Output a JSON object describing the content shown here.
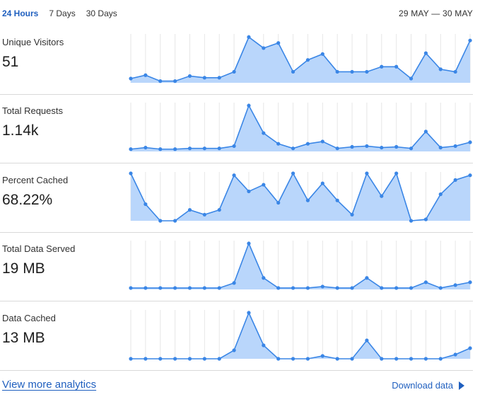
{
  "tabs": [
    {
      "label": "24 Hours",
      "active": true
    },
    {
      "label": "7 Days",
      "active": false
    },
    {
      "label": "30 Days",
      "active": false
    }
  ],
  "date_range": "29 MAY — 30 MAY",
  "colors": {
    "accent": "#3a86e6",
    "fill": "#b9d6fb",
    "grid": "#e6e6e6",
    "link": "#1f5fbf"
  },
  "metrics": [
    {
      "label": "Unique Visitors",
      "value": "51"
    },
    {
      "label": "Total Requests",
      "value": "1.14k"
    },
    {
      "label": "Percent Cached",
      "value": "68.22%"
    },
    {
      "label": "Total Data Served",
      "value": "19 MB"
    },
    {
      "label": "Data Cached",
      "value": "13 MB"
    }
  ],
  "chart_data": [
    {
      "type": "area",
      "title": "Unique Visitors",
      "x": [
        0,
        1,
        2,
        3,
        4,
        5,
        6,
        7,
        8,
        9,
        10,
        11,
        12,
        13,
        14,
        15,
        16,
        17,
        18,
        19,
        20,
        21,
        22,
        23
      ],
      "values": [
        5,
        9,
        2,
        2,
        8,
        6,
        6,
        13,
        54,
        41,
        47,
        13,
        27,
        34,
        13,
        13,
        13,
        19,
        19,
        5,
        35,
        16,
        13,
        50
      ],
      "ylim": [
        0,
        56
      ]
    },
    {
      "type": "area",
      "title": "Total Requests",
      "x": [
        0,
        1,
        2,
        3,
        4,
        5,
        6,
        7,
        8,
        9,
        10,
        11,
        12,
        13,
        14,
        15,
        16,
        17,
        18,
        19,
        20,
        21,
        22,
        23
      ],
      "values": [
        3,
        5,
        3,
        3,
        4,
        4,
        4,
        7,
        60,
        24,
        10,
        4,
        10,
        13,
        4,
        6,
        7,
        5,
        6,
        4,
        26,
        5,
        7,
        12
      ],
      "ylim": [
        0,
        62
      ]
    },
    {
      "type": "area",
      "title": "Percent Cached",
      "x": [
        0,
        1,
        2,
        3,
        4,
        5,
        6,
        7,
        8,
        9,
        10,
        11,
        12,
        13,
        14,
        15,
        16,
        17,
        18,
        19,
        20,
        21,
        22,
        23
      ],
      "values": [
        100,
        35,
        0,
        0,
        23,
        13,
        23,
        96,
        62,
        76,
        38,
        100,
        43,
        79,
        43,
        13,
        100,
        52,
        100,
        0,
        3,
        56,
        86,
        96
      ],
      "ylim": [
        0,
        100
      ]
    },
    {
      "type": "area",
      "title": "Total Data Served",
      "x": [
        0,
        1,
        2,
        3,
        4,
        5,
        6,
        7,
        8,
        9,
        10,
        11,
        12,
        13,
        14,
        15,
        16,
        17,
        18,
        19,
        20,
        21,
        22,
        23
      ],
      "values": [
        2,
        2,
        2,
        2,
        2,
        2,
        2,
        9,
        64,
        16,
        2,
        2,
        2,
        4,
        2,
        2,
        16,
        2,
        2,
        2,
        10,
        2,
        6,
        10
      ],
      "ylim": [
        0,
        66
      ]
    },
    {
      "type": "area",
      "title": "Data Cached",
      "x": [
        0,
        1,
        2,
        3,
        4,
        5,
        6,
        7,
        8,
        9,
        10,
        11,
        12,
        13,
        14,
        15,
        16,
        17,
        18,
        19,
        20,
        21,
        22,
        23
      ],
      "values": [
        0,
        0,
        0,
        0,
        0,
        0,
        0,
        12,
        65,
        19,
        0,
        0,
        0,
        4,
        0,
        0,
        26,
        0,
        0,
        0,
        0,
        0,
        6,
        15
      ],
      "ylim": [
        0,
        67
      ]
    }
  ],
  "footer": {
    "view_more": "View more analytics",
    "download": "Download data"
  }
}
